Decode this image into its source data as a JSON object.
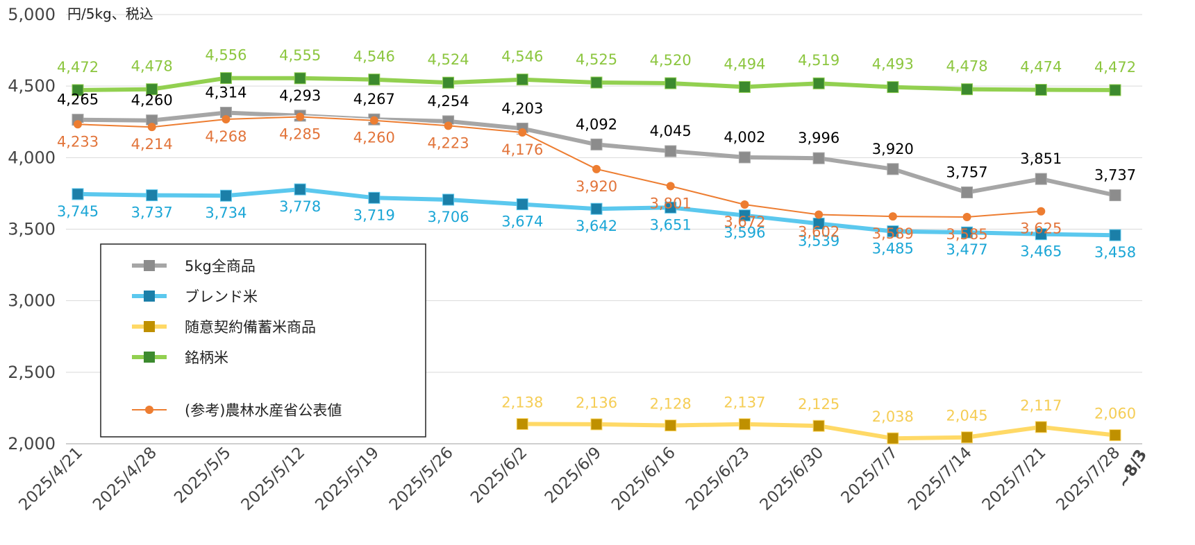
{
  "chart_data": {
    "type": "line",
    "unit_label": "円/5kg、税込",
    "categories": [
      "2025/4/21",
      "2025/4/28",
      "2025/5/5",
      "2025/5/12",
      "2025/5/19",
      "2025/5/26",
      "2025/6/2",
      "2025/6/9",
      "2025/6/16",
      "2025/6/23",
      "2025/6/30",
      "2025/7/7",
      "2025/7/14",
      "2025/7/21",
      "2025/7/28"
    ],
    "last_category_suffix": "~8/3",
    "ylim": [
      2000,
      5000
    ],
    "yticks": [
      2000,
      2500,
      3000,
      3500,
      4000,
      4500,
      5000
    ],
    "ytick_labels": [
      "2,000",
      "2,500",
      "3,000",
      "3,500",
      "4,000",
      "4,500",
      "5,000"
    ],
    "grid": true,
    "legend_position": "left-middle",
    "series": [
      {
        "key": "all5kg",
        "name": "5kg全商品",
        "color": "#a6a6a6",
        "marker_color": "#8c8c8c",
        "label_color": "#000000",
        "marker": "square",
        "label_pos": "above",
        "values": [
          4265,
          4260,
          4314,
          4293,
          4267,
          4254,
          4203,
          4092,
          4045,
          4002,
          3996,
          3920,
          3757,
          3851,
          3737
        ],
        "labels": [
          "4,265",
          "4,260",
          "4,314",
          "4,293",
          "4,267",
          "4,254",
          "4,203",
          "4,092",
          "4,045",
          "4,002",
          "3,996",
          "3,920",
          "3,757",
          "3,851",
          "3,737"
        ]
      },
      {
        "key": "blend",
        "name": "ブレンド米",
        "color": "#5bc8ee",
        "marker_color": "#1b7fa8",
        "label_color": "#1ba6d6",
        "marker": "square",
        "label_pos": "below",
        "values": [
          3745,
          3737,
          3734,
          3778,
          3719,
          3706,
          3674,
          3642,
          3651,
          3596,
          3539,
          3485,
          3477,
          3465,
          3458
        ],
        "labels": [
          "3,745",
          "3,737",
          "3,734",
          "3,778",
          "3,719",
          "3,706",
          "3,674",
          "3,642",
          "3,651",
          "3,596",
          "3,539",
          "3,485",
          "3,477",
          "3,465",
          "3,458"
        ]
      },
      {
        "key": "stockpile",
        "name": "随意契約備蓄米商品",
        "color": "#ffd966",
        "marker_color": "#bf9000",
        "label_color": "#f5cd55",
        "marker": "square",
        "label_pos": "above",
        "values": [
          null,
          null,
          null,
          null,
          null,
          null,
          2138,
          2136,
          2128,
          2137,
          2125,
          2038,
          2045,
          2117,
          2060
        ],
        "labels": [
          "",
          "",
          "",
          "",
          "",
          "",
          "2,138",
          "2,136",
          "2,128",
          "2,137",
          "2,125",
          "2,038",
          "2,045",
          "2,117",
          "2,060"
        ]
      },
      {
        "key": "brand",
        "name": "銘柄米",
        "color": "#92d050",
        "marker_color": "#3c8a2e",
        "label_color": "#8cc63f",
        "marker": "square",
        "label_pos": "above",
        "values": [
          4472,
          4478,
          4556,
          4555,
          4546,
          4524,
          4546,
          4525,
          4520,
          4494,
          4519,
          4493,
          4478,
          4474,
          4472
        ],
        "labels": [
          "4,472",
          "4,478",
          "4,556",
          "4,555",
          "4,546",
          "4,524",
          "4,546",
          "4,525",
          "4,520",
          "4,494",
          "4,519",
          "4,493",
          "4,478",
          "4,474",
          "4,472"
        ]
      },
      {
        "key": "maff",
        "name": "(参考)農林水産省公表値",
        "color": "#ed7d31",
        "marker_color": "#ed7d31",
        "label_color": "#e2743a",
        "marker": "circle",
        "label_pos": "below",
        "values": [
          4233,
          4214,
          4268,
          4285,
          4260,
          4223,
          4176,
          3920,
          3801,
          3672,
          3602,
          3589,
          3585,
          3625,
          null
        ],
        "labels": [
          "4,233",
          "4,214",
          "4,268",
          "4,285",
          "4,260",
          "4,223",
          "4,176",
          "3,920",
          "3,801",
          "3,672",
          "3,602",
          "3,589",
          "3,585",
          "3,625",
          ""
        ]
      }
    ]
  }
}
